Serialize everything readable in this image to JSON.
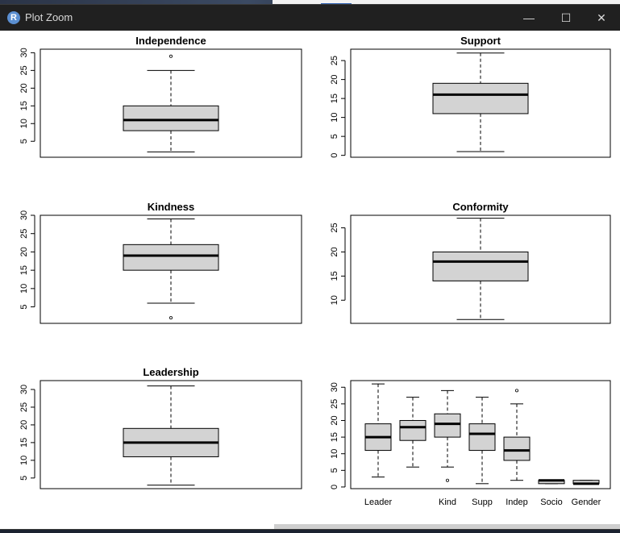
{
  "window": {
    "title": "Plot Zoom",
    "app_icon_letter": "R",
    "controls": {
      "minimize": "—",
      "maximize": "☐",
      "close": "✕"
    }
  },
  "chart_data": [
    {
      "type": "box",
      "title": "Independence",
      "ylim": [
        0.5,
        31
      ],
      "ticks": [
        5,
        10,
        15,
        20,
        25,
        30
      ],
      "boxes": [
        {
          "label": "",
          "min": 2,
          "q1": 8,
          "median": 11,
          "q3": 15,
          "max": 25,
          "outliers": [
            29
          ]
        }
      ]
    },
    {
      "type": "box",
      "title": "Support",
      "ylim": [
        -0.5,
        28
      ],
      "ticks": [
        0,
        5,
        10,
        15,
        20,
        25
      ],
      "boxes": [
        {
          "label": "",
          "min": 1,
          "q1": 11,
          "median": 16,
          "q3": 19,
          "max": 27,
          "outliers": []
        }
      ]
    },
    {
      "type": "box",
      "title": "Kindness",
      "ylim": [
        0.5,
        30
      ],
      "ticks": [
        5,
        10,
        15,
        20,
        25,
        30
      ],
      "boxes": [
        {
          "label": "",
          "min": 6,
          "q1": 15,
          "median": 19,
          "q3": 22,
          "max": 29,
          "outliers": [
            2
          ]
        }
      ]
    },
    {
      "type": "box",
      "title": "Conformity",
      "ylim": [
        5.2,
        27.6
      ],
      "ticks": [
        10,
        15,
        20,
        25
      ],
      "boxes": [
        {
          "label": "",
          "min": 6,
          "q1": 14,
          "median": 18,
          "q3": 20,
          "max": 27,
          "outliers": []
        }
      ]
    },
    {
      "type": "box",
      "title": "Leadership",
      "ylim": [
        2,
        32.5
      ],
      "ticks": [
        5,
        10,
        15,
        20,
        25,
        30
      ],
      "boxes": [
        {
          "label": "",
          "min": 3,
          "q1": 11,
          "median": 15,
          "q3": 19,
          "max": 31,
          "outliers": []
        }
      ]
    },
    {
      "type": "box",
      "title": "",
      "ylim": [
        -0.5,
        32
      ],
      "ticks": [
        0,
        5,
        10,
        15,
        20,
        25,
        30
      ],
      "categories": [
        "Leader",
        "",
        "Kind",
        "Supp",
        "Indep",
        "Socio",
        "Gender"
      ],
      "boxes": [
        {
          "label": "Leader",
          "min": 3,
          "q1": 11,
          "median": 15,
          "q3": 19,
          "max": 31,
          "outliers": []
        },
        {
          "label": "",
          "min": 6,
          "q1": 14,
          "median": 18,
          "q3": 20,
          "max": 27,
          "outliers": []
        },
        {
          "label": "Kind",
          "min": 6,
          "q1": 15,
          "median": 19,
          "q3": 22,
          "max": 29,
          "outliers": [
            2
          ]
        },
        {
          "label": "Supp",
          "min": 1,
          "q1": 11,
          "median": 16,
          "q3": 19,
          "max": 27,
          "outliers": []
        },
        {
          "label": "Indep",
          "min": 2,
          "q1": 8,
          "median": 11,
          "q3": 15,
          "max": 25,
          "outliers": [
            29
          ]
        },
        {
          "label": "Socio",
          "min": 1,
          "q1": 1,
          "median": 2,
          "q3": 2,
          "max": 2,
          "outliers": []
        },
        {
          "label": "Gender",
          "min": 1,
          "q1": 1,
          "median": 1,
          "q3": 2,
          "max": 2,
          "outliers": []
        }
      ]
    }
  ],
  "colors": {
    "box_fill": "#d3d3d3",
    "stroke": "#000000",
    "titlebar": "#202020"
  }
}
